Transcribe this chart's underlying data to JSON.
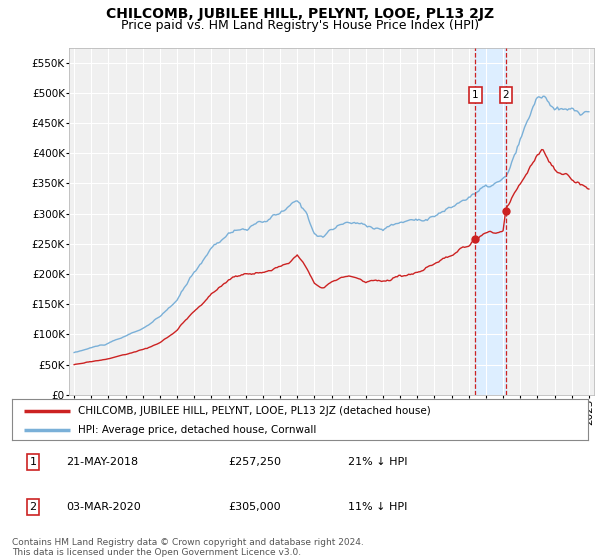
{
  "title": "CHILCOMB, JUBILEE HILL, PELYNT, LOOE, PL13 2JZ",
  "subtitle": "Price paid vs. HM Land Registry's House Price Index (HPI)",
  "ylabel_ticks": [
    "£0",
    "£50K",
    "£100K",
    "£150K",
    "£200K",
    "£250K",
    "£300K",
    "£350K",
    "£400K",
    "£450K",
    "£500K",
    "£550K"
  ],
  "ytick_values": [
    0,
    50000,
    100000,
    150000,
    200000,
    250000,
    300000,
    350000,
    400000,
    450000,
    500000,
    550000
  ],
  "ylim": [
    0,
    575000
  ],
  "xlim_start": 1994.7,
  "xlim_end": 2025.3,
  "background_color": "#ffffff",
  "plot_bg_color": "#f0f0f0",
  "grid_color": "#ffffff",
  "hpi_color": "#7ab0d8",
  "price_color": "#cc2222",
  "marker1_date_x": 2018.38,
  "marker2_date_x": 2020.17,
  "marker1_price": 257250,
  "marker2_price": 305000,
  "shade_color": "#ddeeff",
  "legend_entries": [
    "CHILCOMB, JUBILEE HILL, PELYNT, LOOE, PL13 2JZ (detached house)",
    "HPI: Average price, detached house, Cornwall"
  ],
  "table_rows": [
    [
      "1",
      "21-MAY-2018",
      "£257,250",
      "21% ↓ HPI"
    ],
    [
      "2",
      "03-MAR-2020",
      "£305,000",
      "11% ↓ HPI"
    ]
  ],
  "footnote": "Contains HM Land Registry data © Crown copyright and database right 2024.\nThis data is licensed under the Open Government Licence v3.0.",
  "title_fontsize": 10,
  "subtitle_fontsize": 9,
  "tick_fontsize": 7.5,
  "legend_fontsize": 8
}
